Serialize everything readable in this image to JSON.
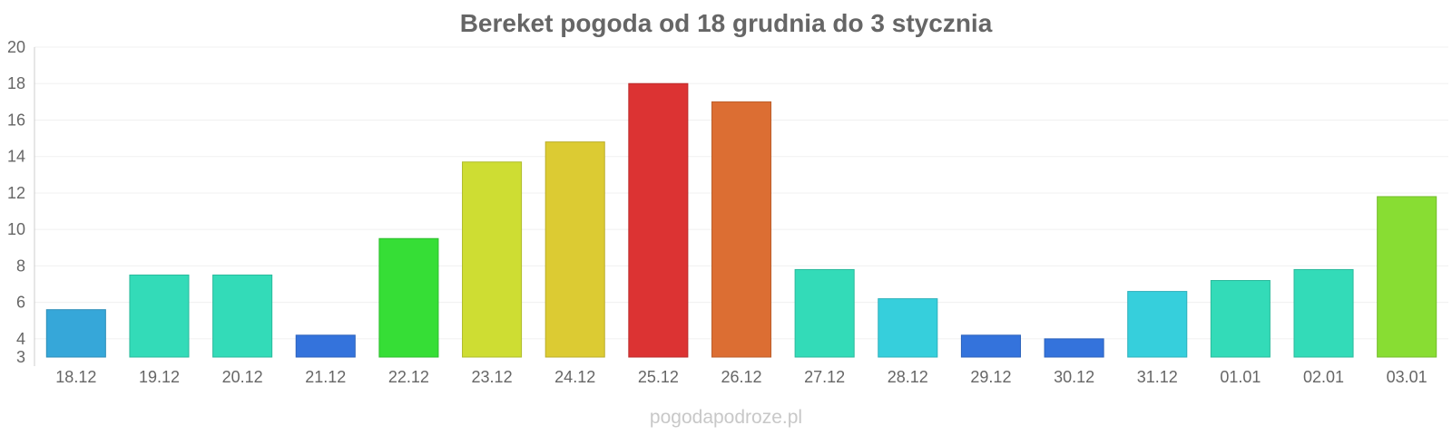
{
  "chart_data": {
    "type": "bar",
    "title": "Bereket pogoda od 18 grudnia do 3 stycznia",
    "categories": [
      "18.12",
      "19.12",
      "20.12",
      "21.12",
      "22.12",
      "23.12",
      "24.12",
      "25.12",
      "26.12",
      "27.12",
      "28.12",
      "29.12",
      "30.12",
      "31.12",
      "01.01",
      "02.01",
      "03.01"
    ],
    "values": [
      5.6,
      7.5,
      7.5,
      4.2,
      9.5,
      13.7,
      14.8,
      18.0,
      17.0,
      7.8,
      6.2,
      4.2,
      4.0,
      6.6,
      7.2,
      7.8,
      11.8
    ],
    "colors": [
      "#36a7d9",
      "#33dbb8",
      "#33dbb8",
      "#3473dc",
      "#36de36",
      "#cedd33",
      "#dccb33",
      "#dc3333",
      "#dc6e33",
      "#33dbb8",
      "#36cfdc",
      "#3473dc",
      "#3473dc",
      "#36cfdc",
      "#33dbb8",
      "#33dbb8",
      "#88dd33"
    ],
    "yticks": [
      3,
      4,
      6,
      8,
      10,
      12,
      14,
      16,
      18,
      20
    ],
    "ylim": [
      3,
      20
    ],
    "xlabel": "",
    "ylabel": "",
    "grid": true
  },
  "watermark": "pogodapodroze.pl"
}
